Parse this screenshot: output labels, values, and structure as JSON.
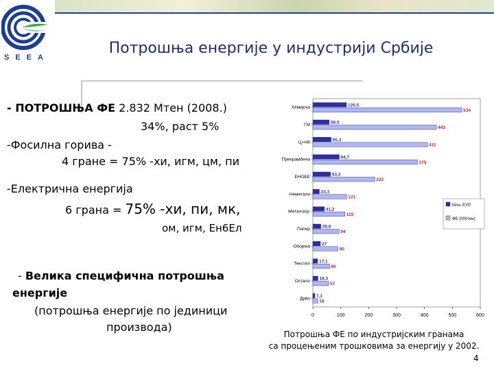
{
  "logo": {
    "text": "SEEA"
  },
  "title": "Потрошња енергије у индустрији Србије",
  "bullets": {
    "fe_label": "- ПОТРОШЊА ФЕ",
    "fe_value": " 2.832 Мтен (2008.)",
    "fe_growth": "34%, раст 5%",
    "fossil": "-Фосилна горива -",
    "fossil_branches": "4 гране = 75% -хи, игм, цм, пи",
    "electric": "-Електрична енергија",
    "electric_branches_prefix": "6 грана = ",
    "electric_branches_pct": "75% -хи, пи, мк,",
    "electric_branches_more": "ом, игм, Ен6Ел",
    "specific_dash": "- ",
    "specific_label": "Велика специфична потрошња",
    "specific_label2": "енергије",
    "specific_note1": "(потрошња енергије по јединици",
    "specific_note2": "производа)"
  },
  "chart_data": {
    "type": "bar",
    "orientation": "horizontal",
    "categories": [
      "Хемијска",
      "ГМ",
      "Ц+НК",
      "Прехрамбена",
      "ЕНОБЕ",
      "Неметали",
      "Металопр.",
      "Папир",
      "Обојена",
      "Текстил",
      "Остало",
      "Дрво"
    ],
    "series": [
      {
        "name": "Млн. EУР",
        "color": "#2d2fa0",
        "values": [
          120.5,
          58.5,
          65.3,
          94.7,
          63.3,
          23.3,
          41.2,
          28.6,
          27.0,
          17.1,
          18.3,
          7.1
        ]
      },
      {
        "name": "ФЕ (000тен)",
        "color": "#b0b6f2",
        "values": [
          534,
          443,
          411,
          375,
          222,
          121,
          115,
          94,
          90,
          60,
          57,
          18
        ]
      }
    ],
    "xlim": [
      0,
      600
    ],
    "xticks": [
      "0",
      "100",
      "200",
      "300",
      "400",
      "500",
      "600"
    ],
    "legend_position": "right"
  },
  "caption": {
    "line1": "Потрошња ФЕ по индустријским гранама",
    "line2": "са процењеним трошковима за енергију у 2002."
  },
  "page_number": "4"
}
